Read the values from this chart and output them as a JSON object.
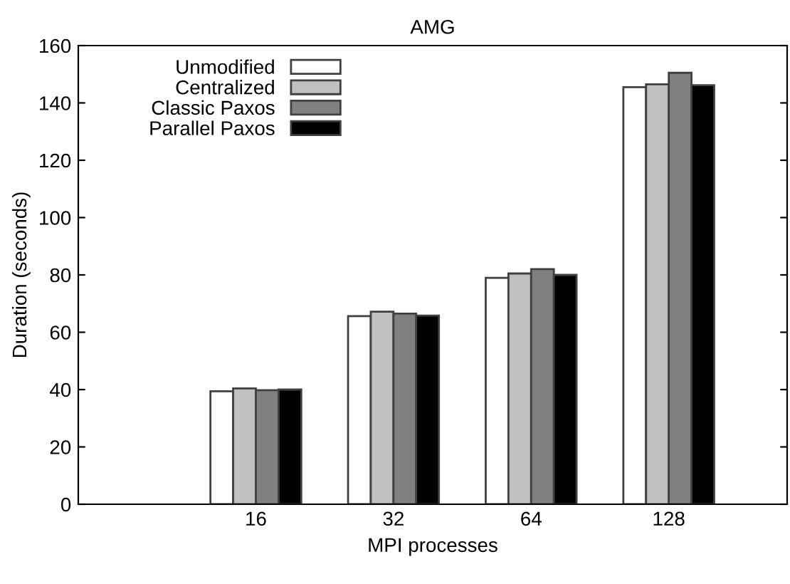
{
  "chart_data": {
    "type": "bar",
    "title": "AMG",
    "xlabel": "MPI processes",
    "ylabel": "Duration (seconds)",
    "categories": [
      "16",
      "32",
      "64",
      "128"
    ],
    "series": [
      {
        "name": "Unmodified",
        "color": "#ffffff",
        "values": [
          39.4,
          65.6,
          79,
          145.5
        ]
      },
      {
        "name": "Centralized",
        "color": "#c0c0c0",
        "values": [
          40.4,
          67.2,
          80.5,
          146.5
        ]
      },
      {
        "name": "Classic Paxos",
        "color": "#808080",
        "values": [
          39.8,
          66.5,
          82,
          150.5
        ]
      },
      {
        "name": "Parallel Paxos",
        "color": "#000000",
        "values": [
          40,
          65.8,
          80,
          146.2
        ]
      }
    ],
    "ylim": [
      0,
      160
    ],
    "yticks": [
      0,
      20,
      40,
      60,
      80,
      100,
      120,
      140,
      160
    ],
    "grid": false,
    "legend": "top left"
  }
}
